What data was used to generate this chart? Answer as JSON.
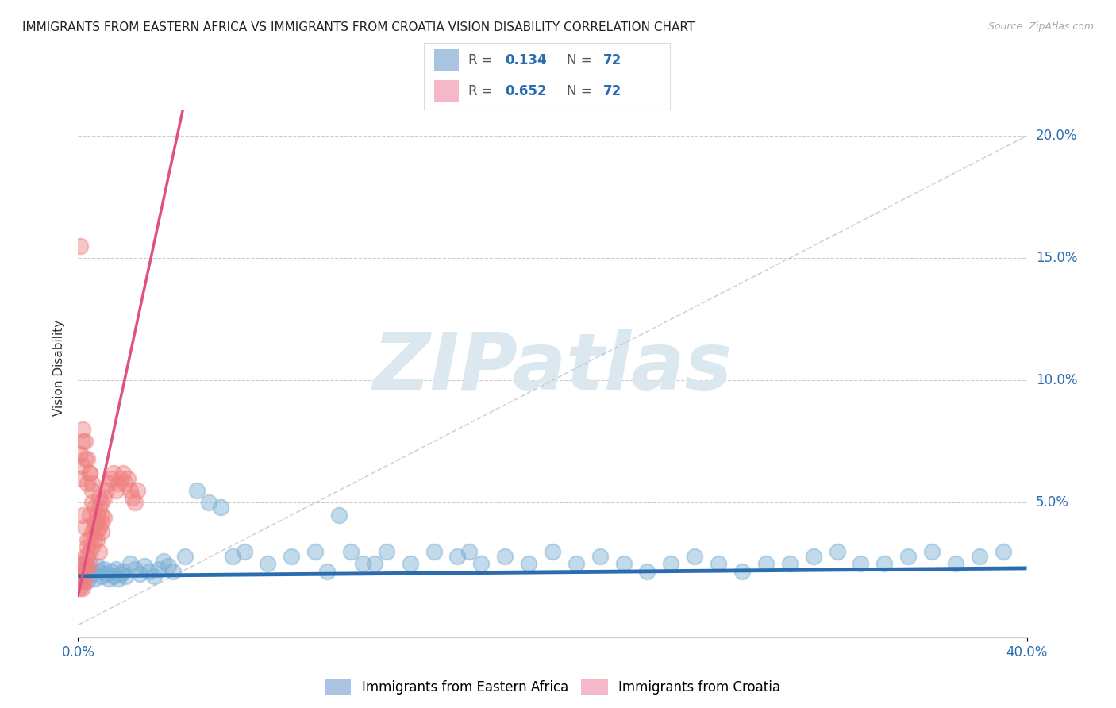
{
  "title": "IMMIGRANTS FROM EASTERN AFRICA VS IMMIGRANTS FROM CROATIA VISION DISABILITY CORRELATION CHART",
  "source": "Source: ZipAtlas.com",
  "ylabel": "Vision Disability",
  "y_ticks": [
    0.0,
    0.05,
    0.1,
    0.15,
    0.2
  ],
  "y_tick_labels": [
    "",
    "5.0%",
    "10.0%",
    "15.0%",
    "20.0%"
  ],
  "xlim": [
    0.0,
    0.4
  ],
  "ylim": [
    -0.005,
    0.215
  ],
  "legend1_color": "#a8c4e0",
  "legend2_color": "#f4b8c8",
  "scatter1_color": "#7aafd4",
  "scatter2_color": "#f08080",
  "trend1_color": "#2b6cb0",
  "trend2_color": "#e05080",
  "ref_line_color": "#cccccc",
  "watermark_color": "#dce8f0",
  "watermark_text": "ZIPatlas",
  "background_color": "#ffffff",
  "title_fontsize": 11,
  "source_fontsize": 9,
  "scatter1_x": [
    0.001,
    0.002,
    0.003,
    0.004,
    0.005,
    0.006,
    0.007,
    0.008,
    0.009,
    0.01,
    0.011,
    0.012,
    0.013,
    0.014,
    0.015,
    0.016,
    0.017,
    0.018,
    0.019,
    0.02,
    0.022,
    0.024,
    0.026,
    0.028,
    0.03,
    0.032,
    0.034,
    0.036,
    0.038,
    0.04,
    0.045,
    0.05,
    0.055,
    0.06,
    0.065,
    0.07,
    0.08,
    0.09,
    0.1,
    0.11,
    0.12,
    0.13,
    0.14,
    0.15,
    0.16,
    0.17,
    0.18,
    0.19,
    0.2,
    0.21,
    0.22,
    0.23,
    0.24,
    0.25,
    0.26,
    0.27,
    0.28,
    0.29,
    0.3,
    0.31,
    0.32,
    0.33,
    0.34,
    0.35,
    0.36,
    0.37,
    0.38,
    0.39,
    0.105,
    0.115,
    0.125,
    0.165
  ],
  "scatter1_y": [
    0.022,
    0.02,
    0.025,
    0.018,
    0.023,
    0.021,
    0.019,
    0.024,
    0.022,
    0.02,
    0.023,
    0.021,
    0.019,
    0.022,
    0.02,
    0.023,
    0.019,
    0.021,
    0.022,
    0.02,
    0.025,
    0.023,
    0.021,
    0.024,
    0.022,
    0.02,
    0.023,
    0.026,
    0.024,
    0.022,
    0.028,
    0.055,
    0.05,
    0.048,
    0.028,
    0.03,
    0.025,
    0.028,
    0.03,
    0.045,
    0.025,
    0.03,
    0.025,
    0.03,
    0.028,
    0.025,
    0.028,
    0.025,
    0.03,
    0.025,
    0.028,
    0.025,
    0.022,
    0.025,
    0.028,
    0.025,
    0.022,
    0.025,
    0.025,
    0.028,
    0.03,
    0.025,
    0.025,
    0.028,
    0.03,
    0.025,
    0.028,
    0.03,
    0.022,
    0.03,
    0.025,
    0.03
  ],
  "scatter2_x": [
    0.001,
    0.001,
    0.001,
    0.001,
    0.001,
    0.002,
    0.002,
    0.002,
    0.002,
    0.003,
    0.003,
    0.003,
    0.003,
    0.004,
    0.004,
    0.004,
    0.005,
    0.005,
    0.005,
    0.006,
    0.006,
    0.007,
    0.007,
    0.008,
    0.008,
    0.009,
    0.009,
    0.01,
    0.01,
    0.011,
    0.011,
    0.012,
    0.013,
    0.014,
    0.015,
    0.016,
    0.017,
    0.018,
    0.019,
    0.02,
    0.021,
    0.022,
    0.023,
    0.024,
    0.025,
    0.001,
    0.002,
    0.003,
    0.004,
    0.005,
    0.006,
    0.007,
    0.008,
    0.009,
    0.01,
    0.001,
    0.002,
    0.003,
    0.004,
    0.005,
    0.006,
    0.007,
    0.008,
    0.009,
    0.01,
    0.002,
    0.003,
    0.004,
    0.005,
    0.006,
    0.001,
    0.002
  ],
  "scatter2_y": [
    0.022,
    0.02,
    0.018,
    0.016,
    0.015,
    0.025,
    0.022,
    0.018,
    0.015,
    0.028,
    0.025,
    0.022,
    0.018,
    0.032,
    0.028,
    0.024,
    0.035,
    0.03,
    0.025,
    0.038,
    0.032,
    0.042,
    0.035,
    0.045,
    0.038,
    0.048,
    0.04,
    0.05,
    0.042,
    0.052,
    0.044,
    0.055,
    0.058,
    0.06,
    0.062,
    0.055,
    0.058,
    0.06,
    0.062,
    0.058,
    0.06,
    0.055,
    0.052,
    0.05,
    0.055,
    0.06,
    0.045,
    0.04,
    0.035,
    0.045,
    0.05,
    0.04,
    0.035,
    0.03,
    0.038,
    0.07,
    0.065,
    0.068,
    0.058,
    0.062,
    0.055,
    0.048,
    0.042,
    0.052,
    0.045,
    0.08,
    0.075,
    0.068,
    0.062,
    0.058,
    0.155,
    0.075
  ],
  "trend1_slope": 0.008,
  "trend1_intercept": 0.02,
  "trend2_slope": 4.5,
  "trend2_intercept": 0.012,
  "ref_slope": 0.5,
  "ref_intercept": 0.0
}
